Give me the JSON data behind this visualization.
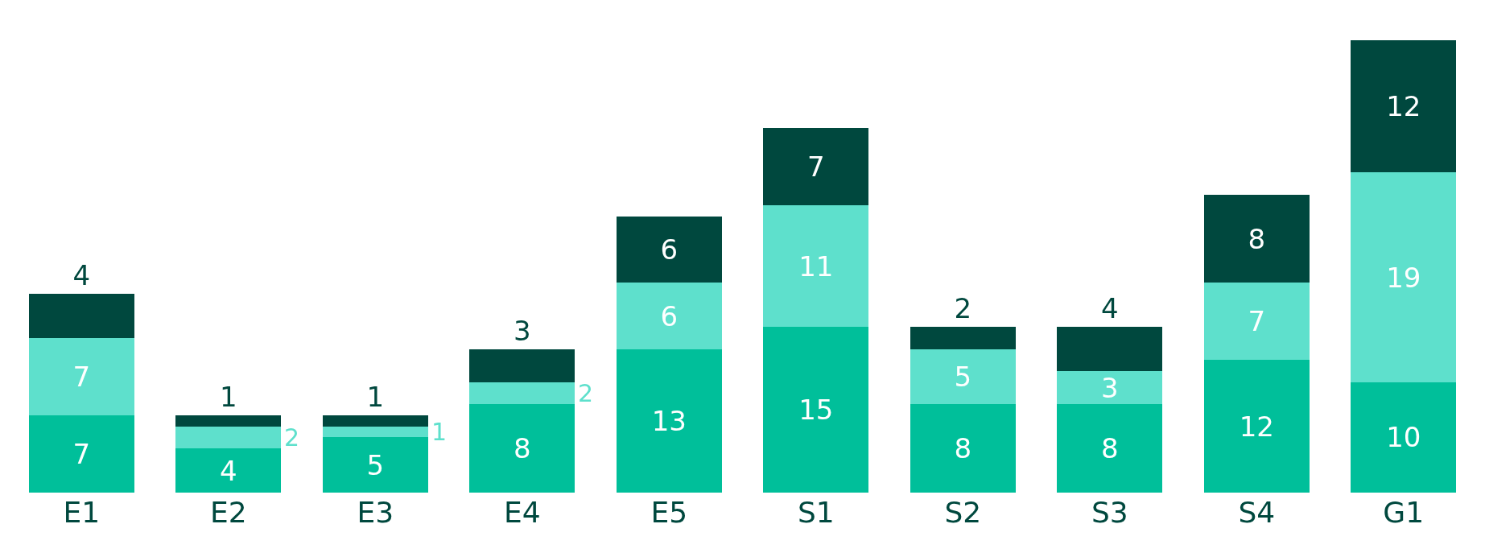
{
  "chart_data": {
    "type": "bar",
    "stacked": true,
    "data_labels": true,
    "legend": false,
    "grid": false,
    "categories": [
      "E1",
      "E2",
      "E3",
      "E4",
      "E5",
      "S1",
      "S2",
      "S3",
      "S4",
      "G1"
    ],
    "series": [
      {
        "color": "#00bf9a",
        "values": [
          7,
          4,
          5,
          8,
          13,
          15,
          8,
          8,
          12,
          10
        ]
      },
      {
        "color": "#5ee0cc",
        "values": [
          7,
          2,
          1,
          2,
          6,
          11,
          5,
          3,
          7,
          19
        ]
      },
      {
        "color": "#00483e",
        "values": [
          4,
          1,
          1,
          3,
          6,
          7,
          2,
          4,
          8,
          12
        ]
      }
    ]
  }
}
